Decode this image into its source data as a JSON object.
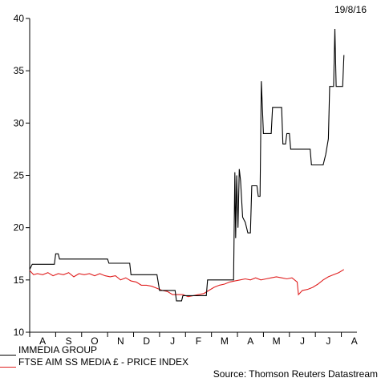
{
  "date_label": "19/8/16",
  "source_label": "Source: Thomson Reuters Datastream",
  "chart_data": {
    "type": "line",
    "ylim": [
      10,
      40
    ],
    "y_ticks": [
      10,
      15,
      20,
      25,
      30,
      35,
      40
    ],
    "x_tick_labels": [
      "A",
      "S",
      "O",
      "N",
      "D",
      "J",
      "F",
      "M",
      "A",
      "M",
      "J",
      "J",
      "A"
    ],
    "x_range_months": [
      0,
      12.6
    ],
    "series": [
      {
        "name": "IMMEDIA GROUP",
        "color": "#000000",
        "points": [
          [
            0.0,
            16.0
          ],
          [
            0.1,
            16.5
          ],
          [
            0.2,
            16.5
          ],
          [
            0.95,
            16.5
          ],
          [
            1.0,
            17.5
          ],
          [
            1.1,
            17.5
          ],
          [
            1.15,
            17.0
          ],
          [
            2.0,
            17.0
          ],
          [
            3.0,
            17.0
          ],
          [
            3.05,
            16.6
          ],
          [
            3.85,
            16.6
          ],
          [
            3.9,
            15.5
          ],
          [
            4.9,
            15.5
          ],
          [
            5.0,
            14.0
          ],
          [
            5.6,
            14.0
          ],
          [
            5.65,
            13.0
          ],
          [
            5.85,
            13.0
          ],
          [
            5.9,
            13.5
          ],
          [
            6.8,
            13.5
          ],
          [
            6.85,
            15.0
          ],
          [
            7.85,
            15.0
          ],
          [
            7.9,
            25.3
          ],
          [
            7.93,
            19.0
          ],
          [
            7.97,
            25.0
          ],
          [
            8.02,
            20.0
          ],
          [
            8.07,
            25.6
          ],
          [
            8.12,
            24.5
          ],
          [
            8.2,
            21.0
          ],
          [
            8.3,
            20.5
          ],
          [
            8.4,
            19.5
          ],
          [
            8.5,
            19.5
          ],
          [
            8.55,
            24.0
          ],
          [
            8.75,
            24.0
          ],
          [
            8.8,
            23.0
          ],
          [
            8.87,
            23.0
          ],
          [
            8.92,
            34.0
          ],
          [
            9.0,
            29.0
          ],
          [
            9.3,
            29.0
          ],
          [
            9.35,
            31.5
          ],
          [
            9.7,
            31.5
          ],
          [
            9.75,
            28.0
          ],
          [
            9.85,
            28.0
          ],
          [
            9.9,
            29.0
          ],
          [
            10.0,
            29.0
          ],
          [
            10.05,
            27.5
          ],
          [
            10.8,
            27.5
          ],
          [
            10.85,
            26.0
          ],
          [
            11.3,
            26.0
          ],
          [
            11.4,
            27.0
          ],
          [
            11.5,
            28.5
          ],
          [
            11.55,
            33.5
          ],
          [
            11.7,
            33.5
          ],
          [
            11.75,
            39.0
          ],
          [
            11.8,
            33.5
          ],
          [
            12.05,
            33.5
          ],
          [
            12.1,
            36.5
          ]
        ]
      },
      {
        "name": "FTSE AIM SS MEDIA £ - PRICE INDEX",
        "color": "#e02020",
        "points": [
          [
            0.0,
            15.9
          ],
          [
            0.15,
            15.5
          ],
          [
            0.3,
            15.6
          ],
          [
            0.5,
            15.5
          ],
          [
            0.7,
            15.7
          ],
          [
            0.9,
            15.4
          ],
          [
            1.1,
            15.6
          ],
          [
            1.3,
            15.5
          ],
          [
            1.5,
            15.7
          ],
          [
            1.7,
            15.3
          ],
          [
            1.9,
            15.6
          ],
          [
            2.1,
            15.5
          ],
          [
            2.3,
            15.6
          ],
          [
            2.5,
            15.4
          ],
          [
            2.7,
            15.6
          ],
          [
            2.9,
            15.4
          ],
          [
            3.1,
            15.3
          ],
          [
            3.3,
            15.4
          ],
          [
            3.5,
            15.0
          ],
          [
            3.7,
            15.2
          ],
          [
            3.9,
            14.9
          ],
          [
            4.1,
            14.8
          ],
          [
            4.3,
            14.5
          ],
          [
            4.5,
            14.5
          ],
          [
            4.7,
            14.4
          ],
          [
            4.9,
            14.2
          ],
          [
            5.1,
            14.0
          ],
          [
            5.3,
            13.9
          ],
          [
            5.5,
            13.6
          ],
          [
            5.7,
            13.6
          ],
          [
            5.9,
            13.6
          ],
          [
            6.1,
            13.4
          ],
          [
            6.3,
            13.5
          ],
          [
            6.5,
            13.6
          ],
          [
            6.7,
            13.7
          ],
          [
            6.9,
            14.0
          ],
          [
            7.1,
            14.3
          ],
          [
            7.3,
            14.5
          ],
          [
            7.5,
            14.6
          ],
          [
            7.7,
            14.8
          ],
          [
            7.9,
            14.9
          ],
          [
            8.1,
            15.0
          ],
          [
            8.3,
            15.1
          ],
          [
            8.5,
            15.0
          ],
          [
            8.7,
            15.2
          ],
          [
            8.9,
            15.0
          ],
          [
            9.1,
            15.1
          ],
          [
            9.3,
            15.2
          ],
          [
            9.5,
            15.3
          ],
          [
            9.7,
            15.2
          ],
          [
            9.9,
            15.1
          ],
          [
            10.1,
            15.2
          ],
          [
            10.3,
            14.8
          ],
          [
            10.35,
            13.6
          ],
          [
            10.5,
            14.0
          ],
          [
            10.7,
            14.1
          ],
          [
            10.9,
            14.3
          ],
          [
            11.1,
            14.6
          ],
          [
            11.3,
            15.0
          ],
          [
            11.5,
            15.3
          ],
          [
            11.7,
            15.5
          ],
          [
            11.9,
            15.7
          ],
          [
            12.1,
            16.0
          ]
        ]
      }
    ]
  }
}
